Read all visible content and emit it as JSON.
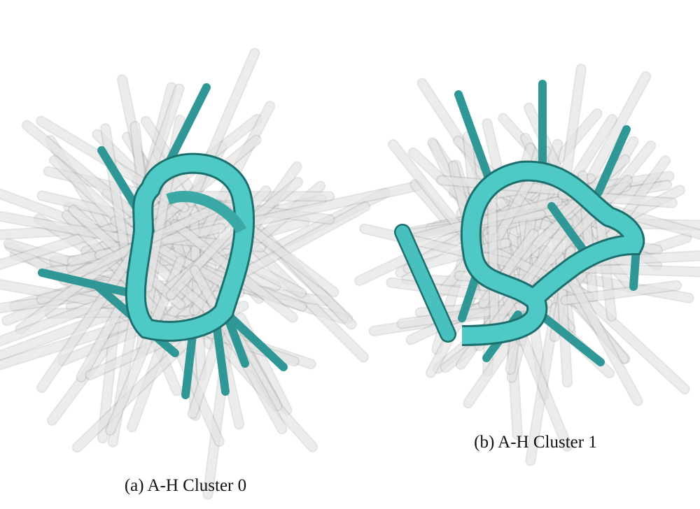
{
  "figures": [
    {
      "caption": "(a) A-H Cluster 0"
    },
    {
      "caption": "(b) A-H Cluster 1"
    }
  ]
}
